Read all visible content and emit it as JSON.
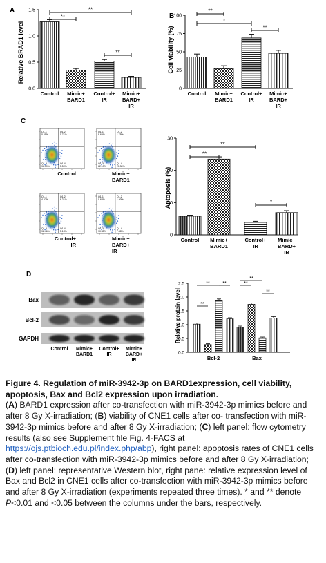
{
  "panels": {
    "A": {
      "label": "A",
      "chart_data": {
        "type": "bar",
        "ylabel": "Relative BRAD1 level",
        "ylim": [
          0,
          1.5
        ],
        "yticks": [
          "0.0",
          "0.5",
          "1.0",
          "1.5"
        ],
        "categories": [
          [
            "Control"
          ],
          [
            "Mimic+",
            "BARD1"
          ],
          [
            "Control+",
            "IR"
          ],
          [
            "Mimic+",
            "BARD+",
            "IR"
          ]
        ],
        "values": [
          1.27,
          0.35,
          0.52,
          0.21
        ],
        "errors": [
          0.04,
          0.03,
          0.03,
          0.02
        ],
        "sig": [
          "**",
          "**",
          "**"
        ]
      }
    },
    "B": {
      "label": "B",
      "chart_data": {
        "type": "bar",
        "ylabel": "Cell viability (%)",
        "ylim": [
          0,
          100
        ],
        "yticks": [
          "0",
          "25",
          "50",
          "75",
          "100"
        ],
        "categories": [
          [
            "Control"
          ],
          [
            "Mimic+",
            "BARD1"
          ],
          [
            "Control+",
            "IR"
          ],
          [
            "Mimic+",
            "BARD+",
            "IR"
          ]
        ],
        "values": [
          43,
          27,
          69,
          48
        ],
        "errors": [
          4,
          4,
          5,
          4
        ],
        "sig": [
          "**",
          "*",
          "**"
        ]
      }
    },
    "C": {
      "label": "C",
      "flow": {
        "plots": [
          {
            "name": "Control",
            "q1": "Q1-1",
            "q2": "Q1-2",
            "q3": "Q1-3",
            "q4": "Q1-4",
            "p1": "0.05%",
            "p2": "0.71%",
            "p3": "96.39%",
            "p4": "5.59%"
          },
          {
            "name": "Mimic+ BARD1",
            "q1": "Q1-1",
            "q2": "Q1-2",
            "q3": "Q1-3",
            "q4": "Q1-4",
            "p1": "8.65%",
            "p2": "1.75%",
            "p3": "62.13%",
            "p4": "20.34%"
          },
          {
            "name": "Control+ IR",
            "q1": "Q1-1",
            "q2": "Q1-2",
            "q3": "Q1-3",
            "q4": "Q1-4",
            "p1": "4.52%",
            "p2": "9.21%",
            "p3": "92.46%",
            "p4": "5.13%"
          },
          {
            "name": "Mimic+ BARD+ IR",
            "q1": "Q1-1",
            "q2": "Q1-2",
            "q3": "Q1-3",
            "q4": "Q1-4",
            "p1": "0.64%",
            "p2": "1.90%",
            "p3": "90.45%",
            "p4": "7.38%"
          }
        ],
        "labels": [
          [
            "Control"
          ],
          [
            "Mimic+",
            "BARD1"
          ],
          [
            "Control+",
            "IR"
          ],
          [
            "Mimic+",
            "BARD+",
            "IR"
          ]
        ]
      },
      "chart_data": {
        "type": "bar",
        "ylabel": "Aptoposis (%)",
        "ylim": [
          0,
          30
        ],
        "yticks": [
          "0",
          "10",
          "20",
          "30"
        ],
        "categories": [
          [
            "Control"
          ],
          [
            "Mimic+",
            "BARD1"
          ],
          [
            "Control+",
            "IR"
          ],
          [
            "Mimic+",
            "BARD+",
            "IR"
          ]
        ],
        "values": [
          5.8,
          23.5,
          3.9,
          6.9
        ],
        "errors": [
          0.3,
          0.7,
          0.3,
          0.6
        ],
        "sig": [
          "**",
          "**",
          "*"
        ]
      }
    },
    "D": {
      "label": "D",
      "blot": {
        "rows": [
          "Bax",
          "Bcl-2",
          "GAPDH"
        ],
        "lanes": [
          [
            "Control"
          ],
          [
            "Mimic+",
            "BARD1"
          ],
          [
            "Control+",
            "IR"
          ],
          [
            "Mimic+",
            "BARD+",
            "IR"
          ]
        ]
      },
      "chart_data": {
        "type": "bar",
        "ylabel": "Relative protein level",
        "ylim": [
          0,
          2.5
        ],
        "yticks": [
          "0.0",
          "0.5",
          "1.0",
          "1.5",
          "2.0",
          "2.5"
        ],
        "groups": [
          "Bcl-2",
          "Bax"
        ],
        "series_values": [
          [
            1.02,
            0.28,
            1.88,
            1.21
          ],
          [
            0.91,
            1.74,
            0.52,
            1.24
          ]
        ],
        "errors": [
          [
            0.04,
            0.03,
            0.05,
            0.04
          ],
          [
            0.04,
            0.05,
            0.03,
            0.05
          ]
        ],
        "sig": [
          "**",
          "**",
          "**",
          "**",
          "**",
          "**"
        ]
      }
    }
  },
  "caption": {
    "title": "Figure 4. Regulation of miR-3942-3p on BARD1expression, cell viability, apoptosis, Bax and Bcl2 expression upon irradiation.",
    "A_label": "A",
    "A_text": " BARD1 expression after co-transfection with miR-3942-3p mimics before and after 8 Gy X-irradiation; (",
    "B_label": "B",
    "B_text": ") viability of CNE1 cells after co- transfection with miR-3942-3p mimics before and after 8 Gy X-irradiation; (",
    "C_label": "C",
    "C_text": ") left panel: flow cytometry results (also see Supplement file Fig. 4-FACS at ",
    "link": "https://ojs.ptbioch.edu.pl/index.php/abp",
    "after_link": "), right panel: apoptosis rates of CNE1 cells after co-transfection with miR-3942-3p mimics before and after 8 Gy X-irradiation; (",
    "D_label": "D",
    "D_text": ") left panel: representative Western blot, right pane: relative expression level of Bax and Bcl2 in CNE1 cells after co-transfection with miR-3942-3p mimics before and after 8 Gy X-irradiation (experiments repeated three times). * and ** denote ",
    "p_italic": "P",
    "end_text": "<0.01 and <0.05 between the columns under the bars, respectively."
  }
}
